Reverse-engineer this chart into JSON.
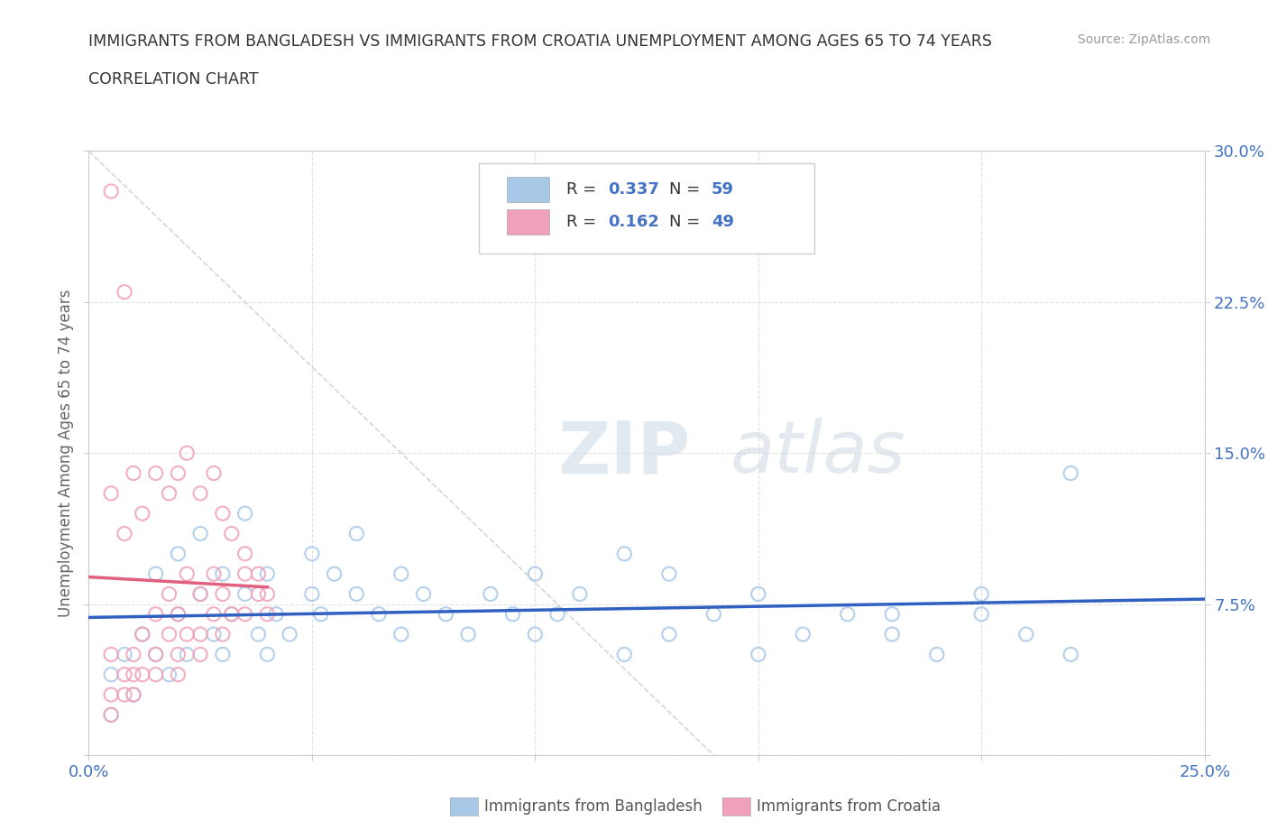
{
  "title_line1": "IMMIGRANTS FROM BANGLADESH VS IMMIGRANTS FROM CROATIA UNEMPLOYMENT AMONG AGES 65 TO 74 YEARS",
  "title_line2": "CORRELATION CHART",
  "source_text": "Source: ZipAtlas.com",
  "ylabel": "Unemployment Among Ages 65 to 74 years",
  "xlim": [
    0.0,
    0.25
  ],
  "ylim": [
    0.0,
    0.3
  ],
  "xticks": [
    0.0,
    0.05,
    0.1,
    0.15,
    0.2,
    0.25
  ],
  "yticks": [
    0.0,
    0.075,
    0.15,
    0.225,
    0.3
  ],
  "xticklabels": [
    "0.0%",
    "",
    "",
    "",
    "",
    "25.0%"
  ],
  "yticklabels_right": [
    "",
    "7.5%",
    "15.0%",
    "22.5%",
    "30.0%"
  ],
  "color_bangladesh": "#a8c8e8",
  "color_croatia": "#f0a0b8",
  "regression_line_color_bangladesh": "#3060c0",
  "regression_line_color_croatia": "#e06080",
  "watermark_zip": "ZIP",
  "watermark_atlas": "atlas",
  "bangladesh_x": [
    0.005,
    0.008,
    0.01,
    0.012,
    0.015,
    0.015,
    0.018,
    0.02,
    0.02,
    0.022,
    0.025,
    0.025,
    0.028,
    0.03,
    0.03,
    0.032,
    0.035,
    0.035,
    0.038,
    0.04,
    0.04,
    0.042,
    0.045,
    0.05,
    0.05,
    0.052,
    0.055,
    0.06,
    0.06,
    0.065,
    0.07,
    0.07,
    0.075,
    0.08,
    0.085,
    0.09,
    0.095,
    0.1,
    0.1,
    0.105,
    0.11,
    0.12,
    0.13,
    0.14,
    0.15,
    0.16,
    0.17,
    0.18,
    0.19,
    0.2,
    0.21,
    0.22,
    0.12,
    0.15,
    0.13,
    0.18,
    0.2,
    0.22,
    0.005
  ],
  "bangladesh_y": [
    0.04,
    0.05,
    0.03,
    0.06,
    0.05,
    0.09,
    0.04,
    0.07,
    0.1,
    0.05,
    0.08,
    0.11,
    0.06,
    0.05,
    0.09,
    0.07,
    0.08,
    0.12,
    0.06,
    0.09,
    0.05,
    0.07,
    0.06,
    0.08,
    0.1,
    0.07,
    0.09,
    0.08,
    0.11,
    0.07,
    0.09,
    0.06,
    0.08,
    0.07,
    0.06,
    0.08,
    0.07,
    0.06,
    0.09,
    0.07,
    0.08,
    0.05,
    0.06,
    0.07,
    0.05,
    0.06,
    0.07,
    0.06,
    0.05,
    0.07,
    0.06,
    0.05,
    0.1,
    0.08,
    0.09,
    0.07,
    0.08,
    0.14,
    0.02
  ],
  "croatia_x": [
    0.005,
    0.005,
    0.005,
    0.008,
    0.008,
    0.01,
    0.01,
    0.01,
    0.012,
    0.012,
    0.015,
    0.015,
    0.015,
    0.018,
    0.018,
    0.02,
    0.02,
    0.02,
    0.022,
    0.022,
    0.025,
    0.025,
    0.025,
    0.028,
    0.028,
    0.03,
    0.03,
    0.032,
    0.035,
    0.035,
    0.038,
    0.04,
    0.005,
    0.008,
    0.01,
    0.012,
    0.015,
    0.018,
    0.02,
    0.022,
    0.025,
    0.028,
    0.03,
    0.032,
    0.035,
    0.038,
    0.04,
    0.005,
    0.008
  ],
  "croatia_y": [
    0.05,
    0.03,
    0.02,
    0.04,
    0.03,
    0.05,
    0.04,
    0.03,
    0.06,
    0.04,
    0.07,
    0.05,
    0.04,
    0.08,
    0.06,
    0.07,
    0.05,
    0.04,
    0.09,
    0.06,
    0.08,
    0.06,
    0.05,
    0.09,
    0.07,
    0.08,
    0.06,
    0.07,
    0.09,
    0.07,
    0.08,
    0.07,
    0.13,
    0.11,
    0.14,
    0.12,
    0.14,
    0.13,
    0.14,
    0.15,
    0.13,
    0.14,
    0.12,
    0.11,
    0.1,
    0.09,
    0.08,
    0.28,
    0.23
  ]
}
